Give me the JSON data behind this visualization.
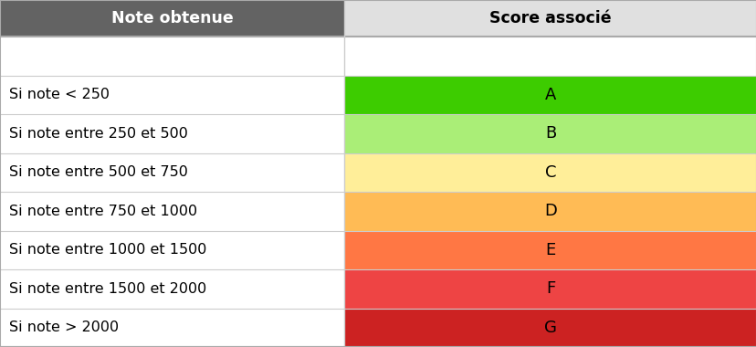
{
  "header_left": "Note obtenue",
  "header_right": "Score associé",
  "header_bg_left": "#636363",
  "header_bg_right": "#e0e0e0",
  "header_text_color_left": "#ffffff",
  "header_text_color_right": "#000000",
  "rows": [
    {
      "left": "",
      "right": "",
      "bg_right": "#ffffff"
    },
    {
      "left": "Si note < 250",
      "right": "A",
      "bg_right": "#3dcc00"
    },
    {
      "left": "Si note entre 250 et 500",
      "right": "B",
      "bg_right": "#aaee77"
    },
    {
      "left": "Si note entre 500 et 750",
      "right": "C",
      "bg_right": "#ffee99"
    },
    {
      "left": "Si note entre 750 et 1000",
      "right": "D",
      "bg_right": "#ffbb55"
    },
    {
      "left": "Si note entre 1000 et 1500",
      "right": "E",
      "bg_right": "#ff7744"
    },
    {
      "left": "Si note entre 1500 et 2000",
      "right": "F",
      "bg_right": "#ee4444"
    },
    {
      "left": "Si note > 2000",
      "right": "G",
      "bg_right": "#cc2222"
    }
  ],
  "col_split": 0.455,
  "bg_color": "#ffffff",
  "left_col_bg": "#ffffff",
  "border_color": "#cccccc",
  "outer_border_color": "#aaaaaa",
  "text_fontsize": 11.5,
  "header_fontsize": 12.5,
  "letter_fontsize": 13,
  "font_family": "DejaVu Sans"
}
